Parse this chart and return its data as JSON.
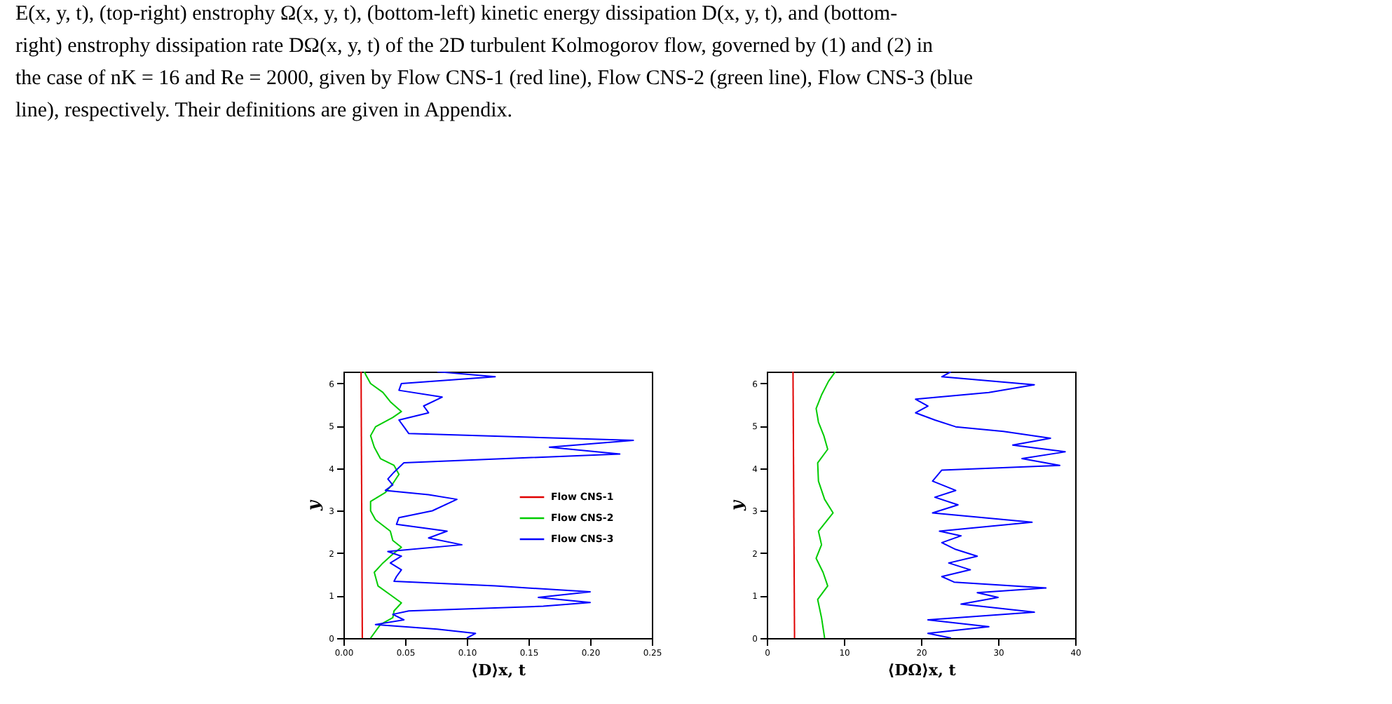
{
  "chart_data": [
    {
      "type": "line",
      "xlabel": "⟨D⟩x, t",
      "ylabel": "y",
      "xlim": [
        0,
        0.25
      ],
      "xticks": [
        {
          "value": 0,
          "label": "0.00"
        },
        0.05,
        {
          "value": 0.1,
          "label": "0.10"
        },
        0.15,
        {
          "value": 0.2,
          "label": "0.20"
        },
        0.25
      ],
      "ylim": [
        0,
        6.28
      ],
      "yticks": [
        0,
        1,
        2,
        3,
        4,
        5,
        6
      ],
      "legend": "right",
      "grid": false,
      "annotations": [
        "E(x, y, t), (top-right) enstrophy Ω(x, y, t), (bottom-left) kinetic energy dissipation D(x, y, t), and (bottom-right) enstrophy dissipation rate DΩ(x, y, t) of the 2D turbulent Kolmogorov flow, governed by (1) and (2) in the case of nK = 16 and Re = 2000, given by Flow CNS-1 (red line), Flow CNS-2 (green line), Flow CNS-3 (blue line), respectively. Their definitions are given in Appendix."
      ],
      "series": [
        {
          "name": "Flow CNS-1",
          "color": "#e00000",
          "x": [
            0.0153,
            0.0143
          ],
          "values": [
            0,
            6.28
          ]
        },
        {
          "name": "Flow CNS-2",
          "color": "#00cc00",
          "x": [
            0.022,
            0.03,
            0.04,
            0.041,
            0.047,
            0.038,
            0.028,
            0.025,
            0.032,
            0.04,
            0.047,
            0.04,
            0.038,
            0.026,
            0.022,
            0.022,
            0.034,
            0.04,
            0.045,
            0.041,
            0.03,
            0.025,
            0.022,
            0.026,
            0.04,
            0.047,
            0.038,
            0.032,
            0.022,
            0.018,
            0.017
          ],
          "values": [
            0,
            0.32,
            0.48,
            0.64,
            0.83,
            1.02,
            1.23,
            1.55,
            1.77,
            1.98,
            2.14,
            2.3,
            2.52,
            2.79,
            3.0,
            3.22,
            3.43,
            3.64,
            3.86,
            4.07,
            4.23,
            4.5,
            4.77,
            4.98,
            5.2,
            5.34,
            5.57,
            5.79,
            6.0,
            6.21,
            6.28
          ]
        },
        {
          "name": "Flow CNS-3",
          "color": "#0000ff",
          "x": [
            0.1,
            0.107,
            0.076,
            0.026,
            0.049,
            0.04,
            0.053,
            0.162,
            0.2,
            0.158,
            0.2,
            0.123,
            0.041,
            0.043,
            0.047,
            0.038,
            0.047,
            0.036,
            0.096,
            0.069,
            0.084,
            0.043,
            0.045,
            0.072,
            0.092,
            0.069,
            0.034,
            0.04,
            0.036,
            0.041,
            0.049,
            0.224,
            0.167,
            0.235,
            0.053,
            0.049,
            0.045,
            0.069,
            0.065,
            0.08,
            0.045,
            0.047,
            0.123,
            0.079,
            0.076
          ],
          "values": [
            0,
            0.11,
            0.21,
            0.32,
            0.43,
            0.56,
            0.64,
            0.75,
            0.84,
            0.96,
            1.09,
            1.23,
            1.34,
            1.45,
            1.61,
            1.77,
            1.93,
            2.04,
            2.2,
            2.36,
            2.52,
            2.68,
            2.84,
            3.0,
            3.27,
            3.38,
            3.48,
            3.61,
            3.75,
            3.91,
            4.13,
            4.34,
            4.5,
            4.66,
            4.82,
            4.98,
            5.14,
            5.31,
            5.47,
            5.68,
            5.84,
            6.0,
            6.16,
            6.27,
            6.28
          ]
        }
      ]
    },
    {
      "type": "line",
      "xlabel": "⟨DΩ⟩x, t",
      "ylabel": "y",
      "xlim": [
        0,
        40
      ],
      "xticks": [
        0,
        10,
        20,
        30,
        40
      ],
      "ylim": [
        0,
        6.28
      ],
      "yticks": [
        0,
        1,
        2,
        3,
        4,
        5,
        6
      ],
      "grid": false,
      "series": [
        {
          "color": "#e00000",
          "x": [
            3.6,
            3.4
          ],
          "values": [
            0,
            6.28
          ]
        },
        {
          "color": "#00cc00",
          "x": [
            7.5,
            7.1,
            6.6,
            7.9,
            7.3,
            6.4,
            7.1,
            6.7,
            8.6,
            7.5,
            6.7,
            6.6,
            7.9,
            7.4,
            6.7,
            6.4,
            7.1,
            8.0,
            8.9
          ],
          "values": [
            0,
            0.48,
            0.91,
            1.23,
            1.55,
            1.88,
            2.2,
            2.52,
            2.95,
            3.27,
            3.7,
            4.13,
            4.45,
            4.77,
            5.09,
            5.41,
            5.73,
            6.05,
            6.28
          ]
        },
        {
          "color": "#0000ff",
          "x": [
            23.9,
            20.9,
            28.8,
            20.9,
            34.7,
            25.2,
            30.0,
            27.3,
            36.2,
            24.3,
            22.7,
            26.4,
            23.6,
            27.3,
            24.5,
            22.7,
            25.2,
            22.4,
            34.4,
            21.5,
            24.8,
            21.8,
            24.5,
            21.5,
            22.7,
            38.0,
            33.1,
            38.7,
            31.9,
            36.8,
            30.7,
            24.5,
            21.8,
            19.3,
            20.9,
            19.3,
            28.8,
            34.7,
            22.7,
            23.9
          ],
          "values": [
            0,
            0.11,
            0.27,
            0.43,
            0.61,
            0.8,
            0.96,
            1.07,
            1.18,
            1.32,
            1.45,
            1.61,
            1.77,
            1.93,
            2.09,
            2.25,
            2.41,
            2.52,
            2.73,
            2.95,
            3.14,
            3.32,
            3.48,
            3.7,
            3.96,
            4.07,
            4.23,
            4.39,
            4.55,
            4.71,
            4.87,
            4.98,
            5.14,
            5.31,
            5.47,
            5.63,
            5.79,
            5.97,
            6.16,
            6.28
          ]
        }
      ]
    }
  ]
}
